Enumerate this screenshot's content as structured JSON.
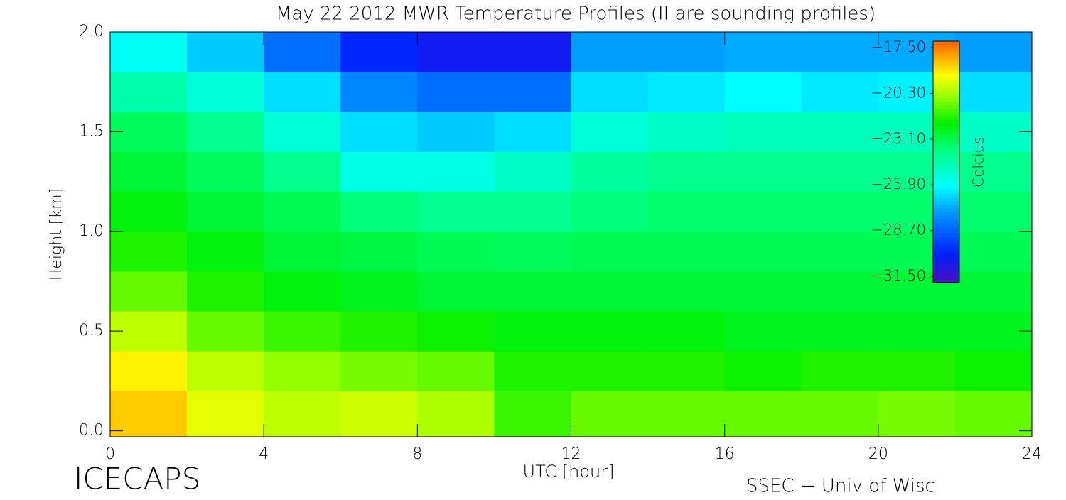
{
  "chart_data": {
    "type": "heatmap",
    "title": "May 22 2012 MWR Temperature Profiles (II are sounding profiles)",
    "x_label": "UTC [hour]",
    "y_label": "Height [km]",
    "colorbar_label": "Celcius",
    "annotations": [
      "ICECAPS",
      "SSEC − Univ of Wisc"
    ],
    "xlim": [
      0,
      24
    ],
    "xticks": [
      0,
      4,
      8,
      12,
      16,
      20,
      24
    ],
    "ylim": [
      -0.03,
      2.0
    ],
    "yticks": [
      {
        "value": 0,
        "label": "0.0"
      },
      {
        "value": 0.5,
        "label": "0.5"
      },
      {
        "value": 1,
        "label": "1.0"
      },
      {
        "value": 1.5,
        "label": "1.5"
      },
      {
        "value": 2,
        "label": "2.0"
      }
    ],
    "zlim": [
      -31.9,
      -17.1
    ],
    "zticks": [
      {
        "value": -17.5,
        "label": "−17.50"
      },
      {
        "value": -20.3,
        "label": "−20.30"
      },
      {
        "value": -23.1,
        "label": "−23.10"
      },
      {
        "value": -25.9,
        "label": "−25.90"
      },
      {
        "value": -28.7,
        "label": "−28.70"
      },
      {
        "value": -31.5,
        "label": "−31.50"
      }
    ],
    "x": [
      1,
      3,
      5,
      7,
      9,
      11,
      13,
      15,
      17,
      19,
      21,
      23
    ],
    "y": [
      0.1,
      0.3,
      0.5,
      0.7,
      0.9,
      1.1,
      1.3,
      1.5,
      1.7,
      1.9
    ],
    "z": [
      [
        -18.5,
        -19.5,
        -20,
        -19.8,
        -20.2,
        -21.5,
        -21,
        -21,
        -21,
        -21,
        -20.8,
        -21
      ],
      [
        -19,
        -20,
        -20.5,
        -20.8,
        -21,
        -21.8,
        -21.8,
        -21.8,
        -22,
        -21.8,
        -21.8,
        -22
      ],
      [
        -20,
        -21,
        -21.5,
        -21.8,
        -22,
        -22.3,
        -22.3,
        -22.3,
        -22.5,
        -22.5,
        -22.5,
        -22.5
      ],
      [
        -21,
        -21.8,
        -22.3,
        -22.5,
        -22.8,
        -22.8,
        -22.8,
        -22.8,
        -22.8,
        -22.8,
        -22.8,
        -22.8
      ],
      [
        -21.8,
        -22.3,
        -22.8,
        -23,
        -23.2,
        -23.3,
        -23.2,
        -23.2,
        -23.2,
        -23.2,
        -23.2,
        -23.2
      ],
      [
        -22.3,
        -22.8,
        -23.2,
        -23.7,
        -24,
        -24,
        -23.7,
        -23.5,
        -23.5,
        -23.5,
        -23.5,
        -23.5
      ],
      [
        -22.8,
        -23.3,
        -24,
        -25.5,
        -25.5,
        -25,
        -24.3,
        -24,
        -24,
        -24,
        -24,
        -24
      ],
      [
        -23.3,
        -24,
        -25.3,
        -26.5,
        -26.8,
        -26.5,
        -25.3,
        -25,
        -24.8,
        -24.8,
        -24.8,
        -25
      ],
      [
        -24.5,
        -25.3,
        -26.5,
        -28,
        -28.5,
        -28.5,
        -26.5,
        -26.3,
        -26,
        -26.3,
        -26.2,
        -26.5
      ],
      [
        -25.8,
        -26.8,
        -28.5,
        -30,
        -30.5,
        -30.5,
        -27.5,
        -27.5,
        -27.3,
        -27.3,
        -27.3,
        -27.5
      ]
    ]
  }
}
